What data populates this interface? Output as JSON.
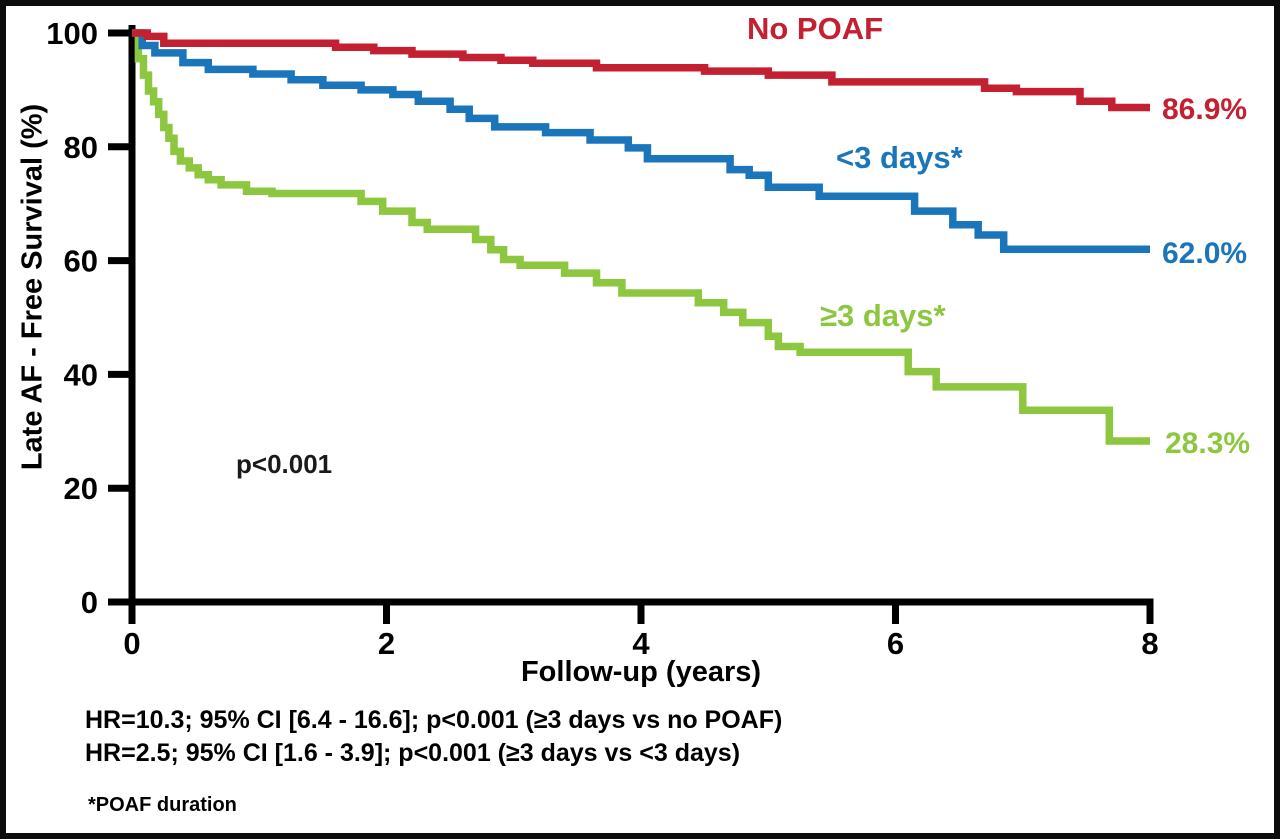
{
  "chart": {
    "y_axis_title": "Late AF - Free Survival (%)",
    "x_axis_title": "Follow-up (years)",
    "p_value": "p<0.001"
  },
  "series_labels": {
    "no_poaf": "No POAF",
    "lt3_days": "<3 days*",
    "ge3_days": "≥3 days*"
  },
  "end_labels": {
    "no_poaf": "86.9%",
    "lt3_days": "62.0%",
    "ge3_days": "28.3%"
  },
  "footer": {
    "stats_line_1": "HR=10.3; 95% CI [6.4 - 16.6]; p<0.001 (≥3 days vs no POAF)",
    "stats_line_2": "HR=2.5; 95% CI [1.6 - 3.9]; p<0.001 (≥3 days vs <3 days)",
    "footnote": "*POAF duration"
  },
  "chart_data": {
    "type": "line",
    "subtype": "kaplan-meier-step",
    "title": "",
    "xlabel": "Follow-up (years)",
    "ylabel": "Late AF - Free Survival (%)",
    "xlim": [
      0,
      8
    ],
    "ylim": [
      0,
      100
    ],
    "x_ticks": [
      0,
      2,
      4,
      6,
      8
    ],
    "y_ticks": [
      0,
      20,
      40,
      60,
      80,
      100
    ],
    "grid": false,
    "legend_position": "inline-labels",
    "axis_color": "#000000",
    "annotations": [
      {
        "text": "p<0.001",
        "x": 1.2,
        "y": 24
      }
    ],
    "series": [
      {
        "key": "no_poaf",
        "name": "No POAF",
        "color": "#C32032",
        "final_value": 86.9,
        "final_label": "86.9%",
        "points": [
          [
            0,
            100
          ],
          [
            0.12,
            99.4
          ],
          [
            0.25,
            98.2
          ],
          [
            1.6,
            97.5
          ],
          [
            1.9,
            96.9
          ],
          [
            2.2,
            96.3
          ],
          [
            2.6,
            95.7
          ],
          [
            2.9,
            95.2
          ],
          [
            3.15,
            94.7
          ],
          [
            3.65,
            93.9
          ],
          [
            4.5,
            93.3
          ],
          [
            5.0,
            92.6
          ],
          [
            5.5,
            91.4
          ],
          [
            6.7,
            90.3
          ],
          [
            6.95,
            89.7
          ],
          [
            7.45,
            88.0
          ],
          [
            7.7,
            86.9
          ],
          [
            8.0,
            86.9
          ]
        ]
      },
      {
        "key": "lt3_days",
        "name": "<3 days*",
        "color": "#1B75BB",
        "final_value": 62.0,
        "final_label": "62.0%",
        "points": [
          [
            0,
            100
          ],
          [
            0.08,
            97.8
          ],
          [
            0.18,
            96.5
          ],
          [
            0.4,
            94.8
          ],
          [
            0.6,
            93.6
          ],
          [
            0.95,
            92.8
          ],
          [
            1.25,
            91.8
          ],
          [
            1.5,
            90.8
          ],
          [
            1.8,
            90.0
          ],
          [
            2.05,
            89.2
          ],
          [
            2.25,
            88.0
          ],
          [
            2.5,
            86.6
          ],
          [
            2.65,
            85.0
          ],
          [
            2.85,
            83.5
          ],
          [
            3.25,
            82.5
          ],
          [
            3.6,
            81.2
          ],
          [
            3.9,
            79.8
          ],
          [
            4.05,
            77.9
          ],
          [
            4.7,
            76.0
          ],
          [
            4.85,
            75.0
          ],
          [
            5.0,
            72.9
          ],
          [
            5.4,
            71.3
          ],
          [
            6.15,
            68.7
          ],
          [
            6.45,
            66.3
          ],
          [
            6.65,
            64.5
          ],
          [
            6.85,
            62.0
          ],
          [
            8.0,
            62.0
          ]
        ]
      },
      {
        "key": "ge3_days",
        "name": "≥3 days*",
        "color": "#8DC63F",
        "final_value": 28.3,
        "final_label": "28.3%",
        "points": [
          [
            0,
            100
          ],
          [
            0.05,
            95.5
          ],
          [
            0.09,
            92.6
          ],
          [
            0.13,
            89.8
          ],
          [
            0.17,
            87.9
          ],
          [
            0.21,
            85.7
          ],
          [
            0.25,
            83.4
          ],
          [
            0.29,
            81.5
          ],
          [
            0.33,
            79.2
          ],
          [
            0.38,
            77.5
          ],
          [
            0.45,
            76.3
          ],
          [
            0.52,
            75.1
          ],
          [
            0.6,
            74.2
          ],
          [
            0.7,
            73.3
          ],
          [
            0.9,
            72.2
          ],
          [
            1.1,
            71.8
          ],
          [
            1.8,
            70.4
          ],
          [
            1.97,
            68.7
          ],
          [
            2.2,
            66.7
          ],
          [
            2.32,
            65.5
          ],
          [
            2.7,
            63.7
          ],
          [
            2.82,
            61.9
          ],
          [
            2.92,
            60.2
          ],
          [
            3.05,
            59.2
          ],
          [
            3.4,
            57.8
          ],
          [
            3.65,
            56.1
          ],
          [
            3.85,
            54.3
          ],
          [
            4.45,
            52.6
          ],
          [
            4.65,
            50.9
          ],
          [
            4.8,
            49.1
          ],
          [
            5.0,
            46.7
          ],
          [
            5.08,
            44.9
          ],
          [
            5.25,
            43.9
          ],
          [
            6.1,
            40.5
          ],
          [
            6.32,
            37.8
          ],
          [
            7.0,
            33.7
          ],
          [
            7.68,
            28.3
          ],
          [
            8.0,
            28.3
          ]
        ]
      }
    ]
  }
}
